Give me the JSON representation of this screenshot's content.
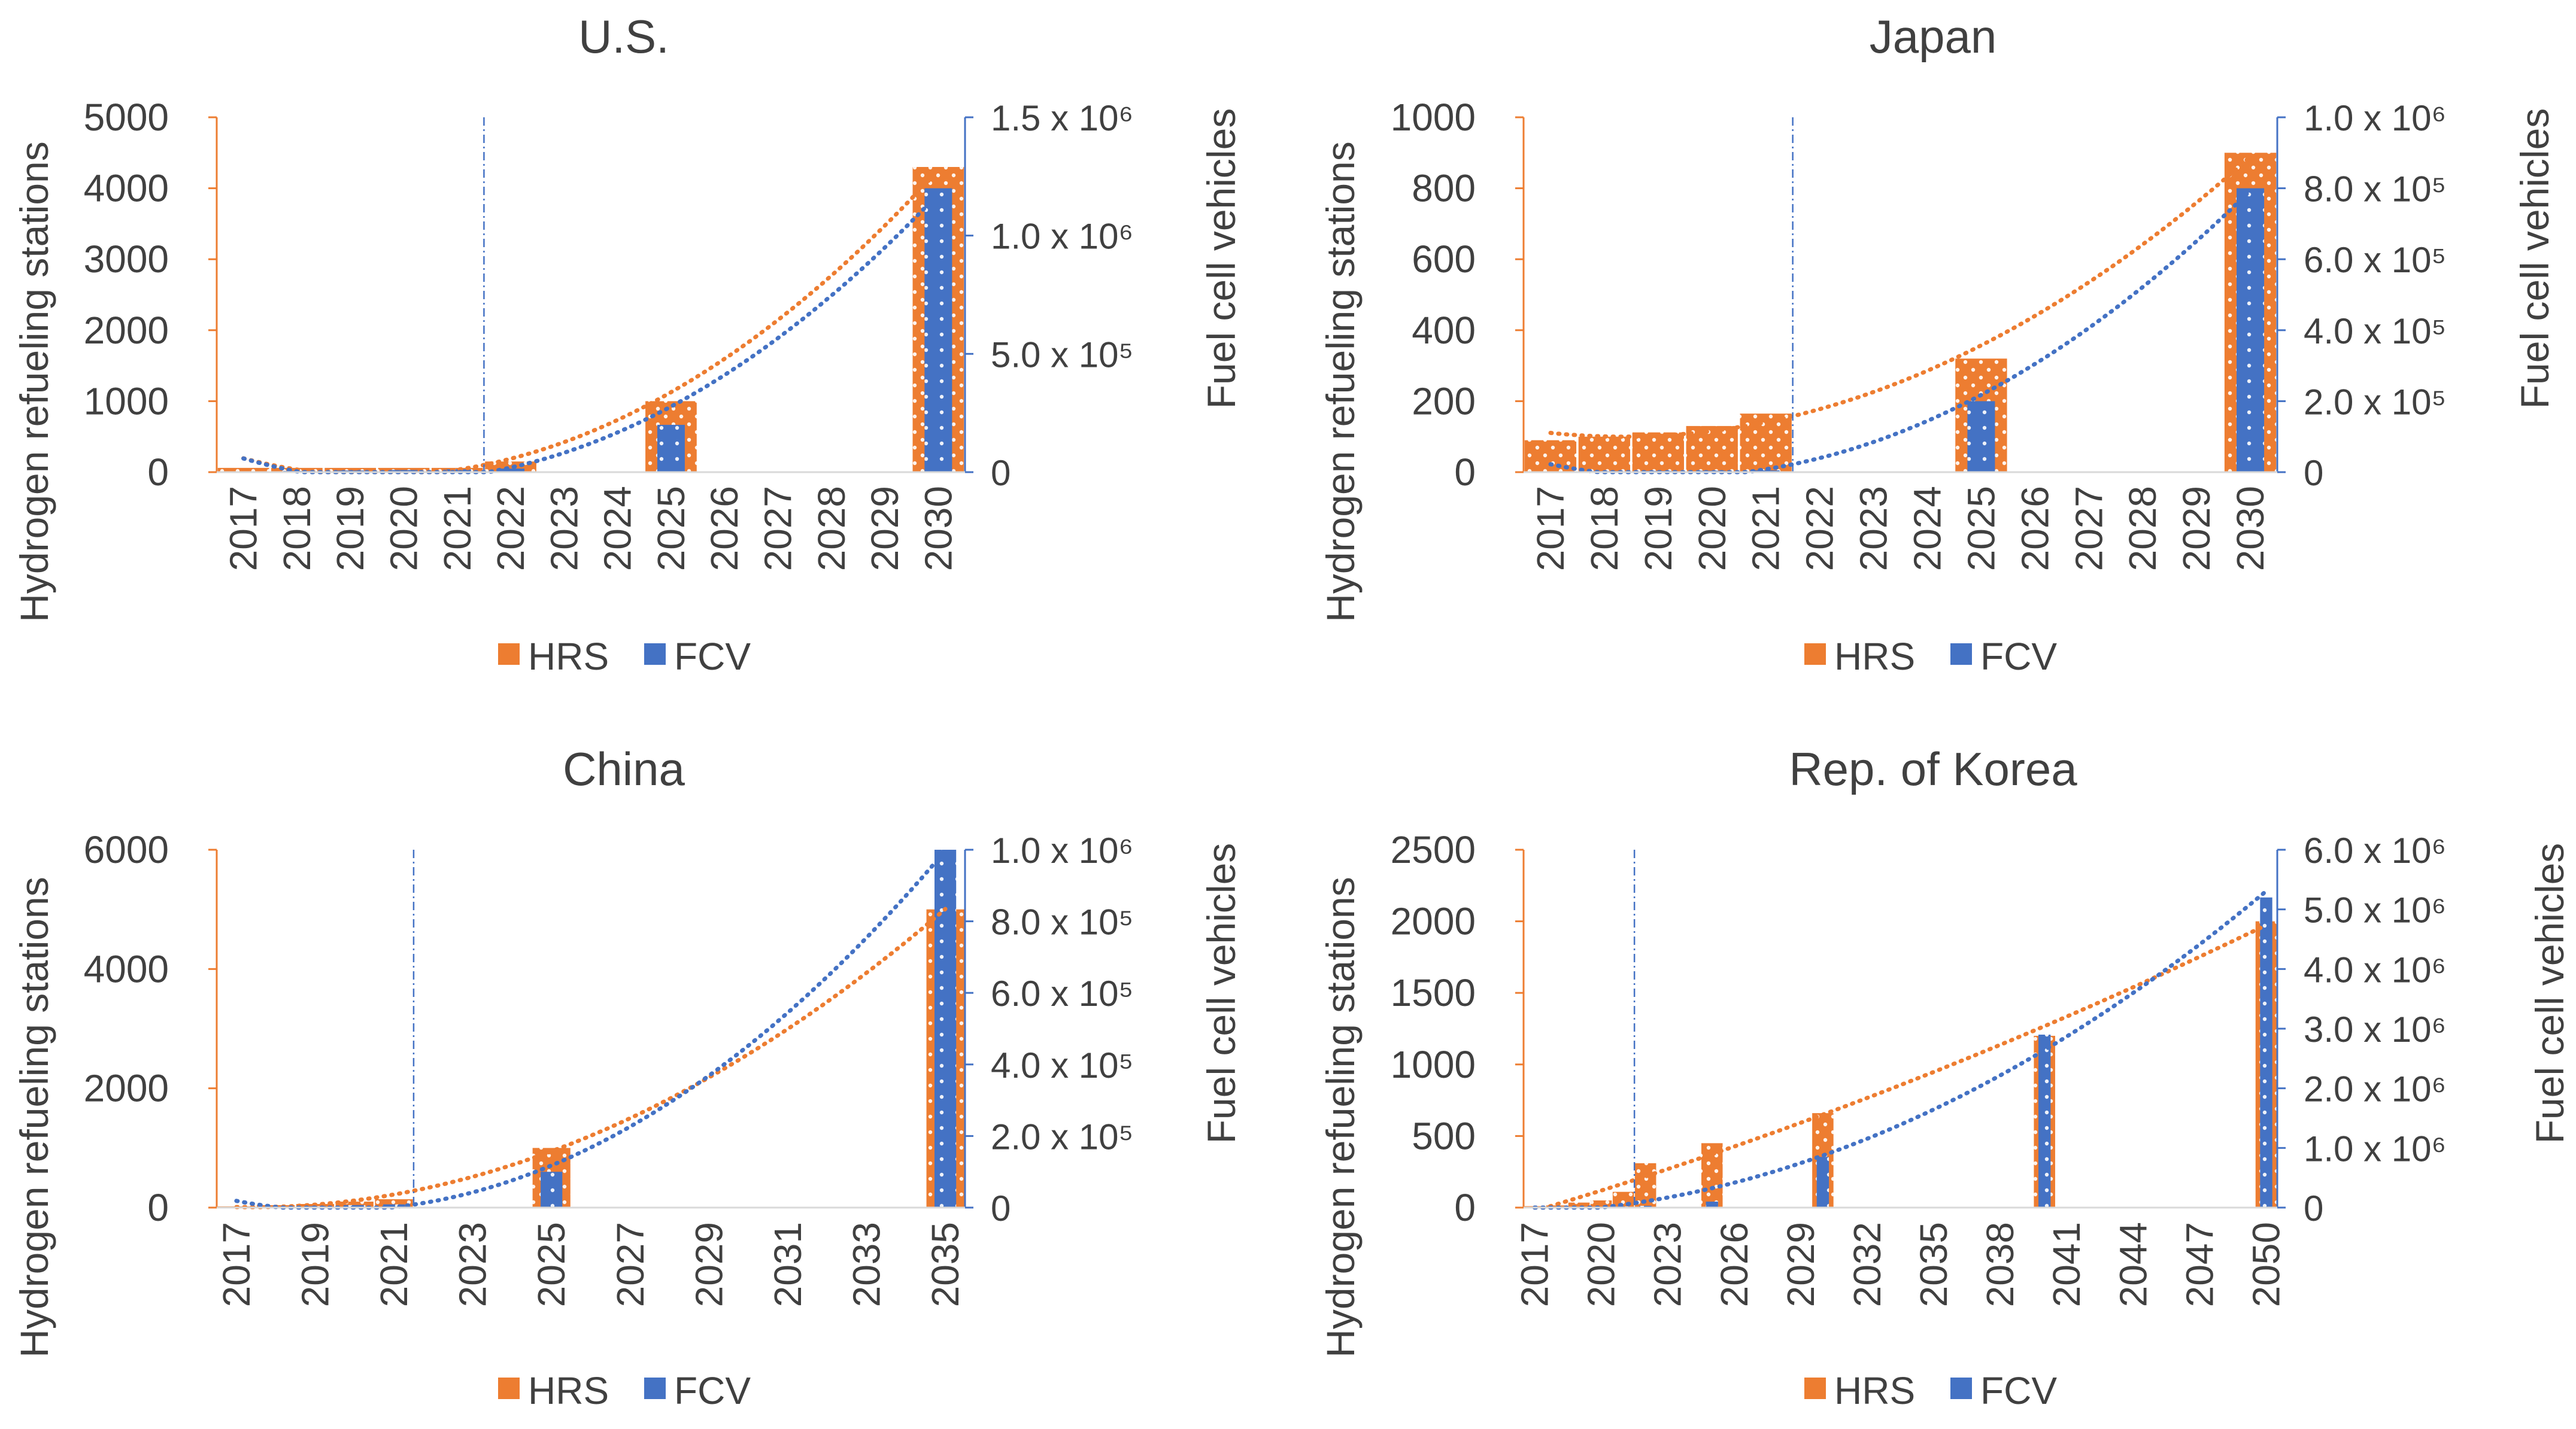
{
  "colors": {
    "hrs": "#ED7D31",
    "fcv": "#4472C4",
    "axis_text": "#404040"
  },
  "chart_data": [
    {
      "type": "bar",
      "title": "U.S.",
      "categories": [
        "2017",
        "2018",
        "2019",
        "2020",
        "2021",
        "2022",
        "2023",
        "2024",
        "2025",
        "2026",
        "2027",
        "2028",
        "2029",
        "2030"
      ],
      "ylabel_left": "Hydrogen refueling stations",
      "ylabel_right": "Fuel cell vehicles",
      "left_ticks": [
        "0",
        "1000",
        "2000",
        "3000",
        "4000",
        "5000"
      ],
      "right_ticks": [
        "0",
        "5.0 x 10⁵",
        "1.0 x 10⁶",
        "1.5 x 10⁶"
      ],
      "ylim_left": [
        0,
        5000
      ],
      "ylim_right": [
        0,
        1500000
      ],
      "vline_after_index": 4.5,
      "series": [
        {
          "name": "HRS",
          "axis": "left",
          "values": [
            60,
            60,
            60,
            60,
            60,
            150,
            null,
            null,
            1000,
            null,
            null,
            null,
            null,
            4300
          ]
        },
        {
          "name": "FCV",
          "axis": "right",
          "values": [
            3000,
            5000,
            7000,
            9000,
            12000,
            15000,
            null,
            null,
            200000,
            null,
            null,
            null,
            null,
            1200000
          ]
        }
      ],
      "legend": [
        "HRS",
        "FCV"
      ]
    },
    {
      "type": "bar",
      "title": "Japan",
      "categories": [
        "2017",
        "2018",
        "2019",
        "2020",
        "2021",
        "2022",
        "2023",
        "2024",
        "2025",
        "2026",
        "2027",
        "2028",
        "2029",
        "2030"
      ],
      "ylabel_left": "Hydrogen refueling stations",
      "ylabel_right": "Fuel cell vehicles",
      "left_ticks": [
        "0",
        "200",
        "400",
        "600",
        "800",
        "1000"
      ],
      "right_ticks": [
        "0",
        "2.0 x 10⁵",
        "4.0 x 10⁵",
        "6.0 x 10⁵",
        "8.0 x 10⁵",
        "1.0 x 10⁶"
      ],
      "ylim_left": [
        0,
        1000
      ],
      "ylim_right": [
        0,
        1000000
      ],
      "vline_after_index": 4.5,
      "series": [
        {
          "name": "HRS",
          "axis": "left",
          "values": [
            90,
            100,
            112,
            130,
            165,
            null,
            null,
            null,
            320,
            null,
            null,
            null,
            null,
            900
          ]
        },
        {
          "name": "FCV",
          "axis": "right",
          "values": [
            2500,
            3000,
            3500,
            4000,
            5000,
            null,
            null,
            null,
            200000,
            null,
            null,
            null,
            null,
            800000
          ]
        }
      ],
      "legend": [
        "HRS",
        "FCV"
      ]
    },
    {
      "type": "bar",
      "title": "China",
      "categories": [
        "2017",
        "2018",
        "2019",
        "2020",
        "2021",
        "2022",
        "2023",
        "2024",
        "2025",
        "2026",
        "2027",
        "2028",
        "2029",
        "2030",
        "2031",
        "2032",
        "2033",
        "2034",
        "2035"
      ],
      "tick_labels": [
        "2017",
        "",
        "2019",
        "",
        "2021",
        "",
        "2023",
        "",
        "2025",
        "",
        "2027",
        "",
        "2029",
        "",
        "2031",
        "",
        "2033",
        "",
        "2035"
      ],
      "ylabel_left": "Hydrogen refueling stations",
      "ylabel_right": "Fuel cell vehicles",
      "left_ticks": [
        "0",
        "2000",
        "4000",
        "6000"
      ],
      "right_ticks": [
        "0",
        "2.0 x 10⁵",
        "4.0 x 10⁵",
        "6.0 x 10⁵",
        "8.0 x 10⁵",
        "1.0 x 10⁶"
      ],
      "ylim_left": [
        0,
        6000
      ],
      "ylim_right": [
        0,
        1000000
      ],
      "vline_after_index": 4.5,
      "series": [
        {
          "name": "HRS",
          "axis": "left",
          "values": [
            20,
            40,
            60,
            100,
            140,
            null,
            null,
            null,
            1000,
            null,
            null,
            null,
            null,
            null,
            null,
            null,
            null,
            null,
            5000
          ]
        },
        {
          "name": "FCV",
          "axis": "right",
          "values": [
            1000,
            2000,
            4000,
            7000,
            9000,
            null,
            null,
            null,
            100000,
            null,
            null,
            null,
            null,
            null,
            null,
            null,
            null,
            null,
            1000000
          ]
        }
      ],
      "legend": [
        "HRS",
        "FCV"
      ]
    },
    {
      "type": "bar",
      "title": "Rep. of Korea",
      "categories": [
        "2017",
        "2018",
        "2019",
        "2020",
        "2021",
        "2022",
        "2023",
        "2024",
        "2025",
        "2026",
        "2027",
        "2028",
        "2029",
        "2030",
        "2031",
        "2032",
        "2033",
        "2034",
        "2035",
        "2036",
        "2037",
        "2038",
        "2039",
        "2040",
        "2041",
        "2042",
        "2043",
        "2044",
        "2045",
        "2046",
        "2047",
        "2048",
        "2049",
        "2050"
      ],
      "tick_labels": [
        "2017",
        "",
        "",
        "2020",
        "",
        "",
        "2023",
        "",
        "",
        "2026",
        "",
        "",
        "2029",
        "",
        "",
        "2032",
        "",
        "",
        "2035",
        "",
        "",
        "2038",
        "",
        "",
        "2041",
        "",
        "",
        "2044",
        "",
        "",
        "2047",
        "",
        "",
        "2050"
      ],
      "ylabel_left": "Hydrogen refueling stations",
      "ylabel_right": "Fuel cell vehicles",
      "left_ticks": [
        "0",
        "500",
        "1000",
        "1500",
        "2000",
        "2500"
      ],
      "right_ticks": [
        "0",
        "1.0 x 10⁶",
        "2.0 x 10⁶",
        "3.0 x 10⁶",
        "4.0 x 10⁶",
        "5.0 x 10⁶",
        "6.0 x 10⁶"
      ],
      "ylim_left": [
        0,
        2500
      ],
      "ylim_right": [
        0,
        6000000
      ],
      "vline_after_index": 4.5,
      "series": [
        {
          "name": "HRS",
          "axis": "left",
          "values": [
            10,
            15,
            35,
            50,
            110,
            310,
            null,
            null,
            450,
            null,
            null,
            null,
            null,
            660,
            null,
            null,
            null,
            null,
            null,
            null,
            null,
            null,
            null,
            1200,
            null,
            null,
            null,
            null,
            null,
            null,
            null,
            null,
            null,
            2000
          ]
        },
        {
          "name": "FCV",
          "axis": "right",
          "values": [
            200,
            900,
            5000,
            10000,
            19000,
            30000,
            null,
            null,
            100000,
            null,
            null,
            null,
            null,
            850000,
            null,
            null,
            null,
            null,
            null,
            null,
            null,
            null,
            null,
            2900000,
            null,
            null,
            null,
            null,
            null,
            null,
            null,
            null,
            null,
            5200000
          ]
        }
      ],
      "legend": [
        "HRS",
        "FCV"
      ]
    }
  ]
}
